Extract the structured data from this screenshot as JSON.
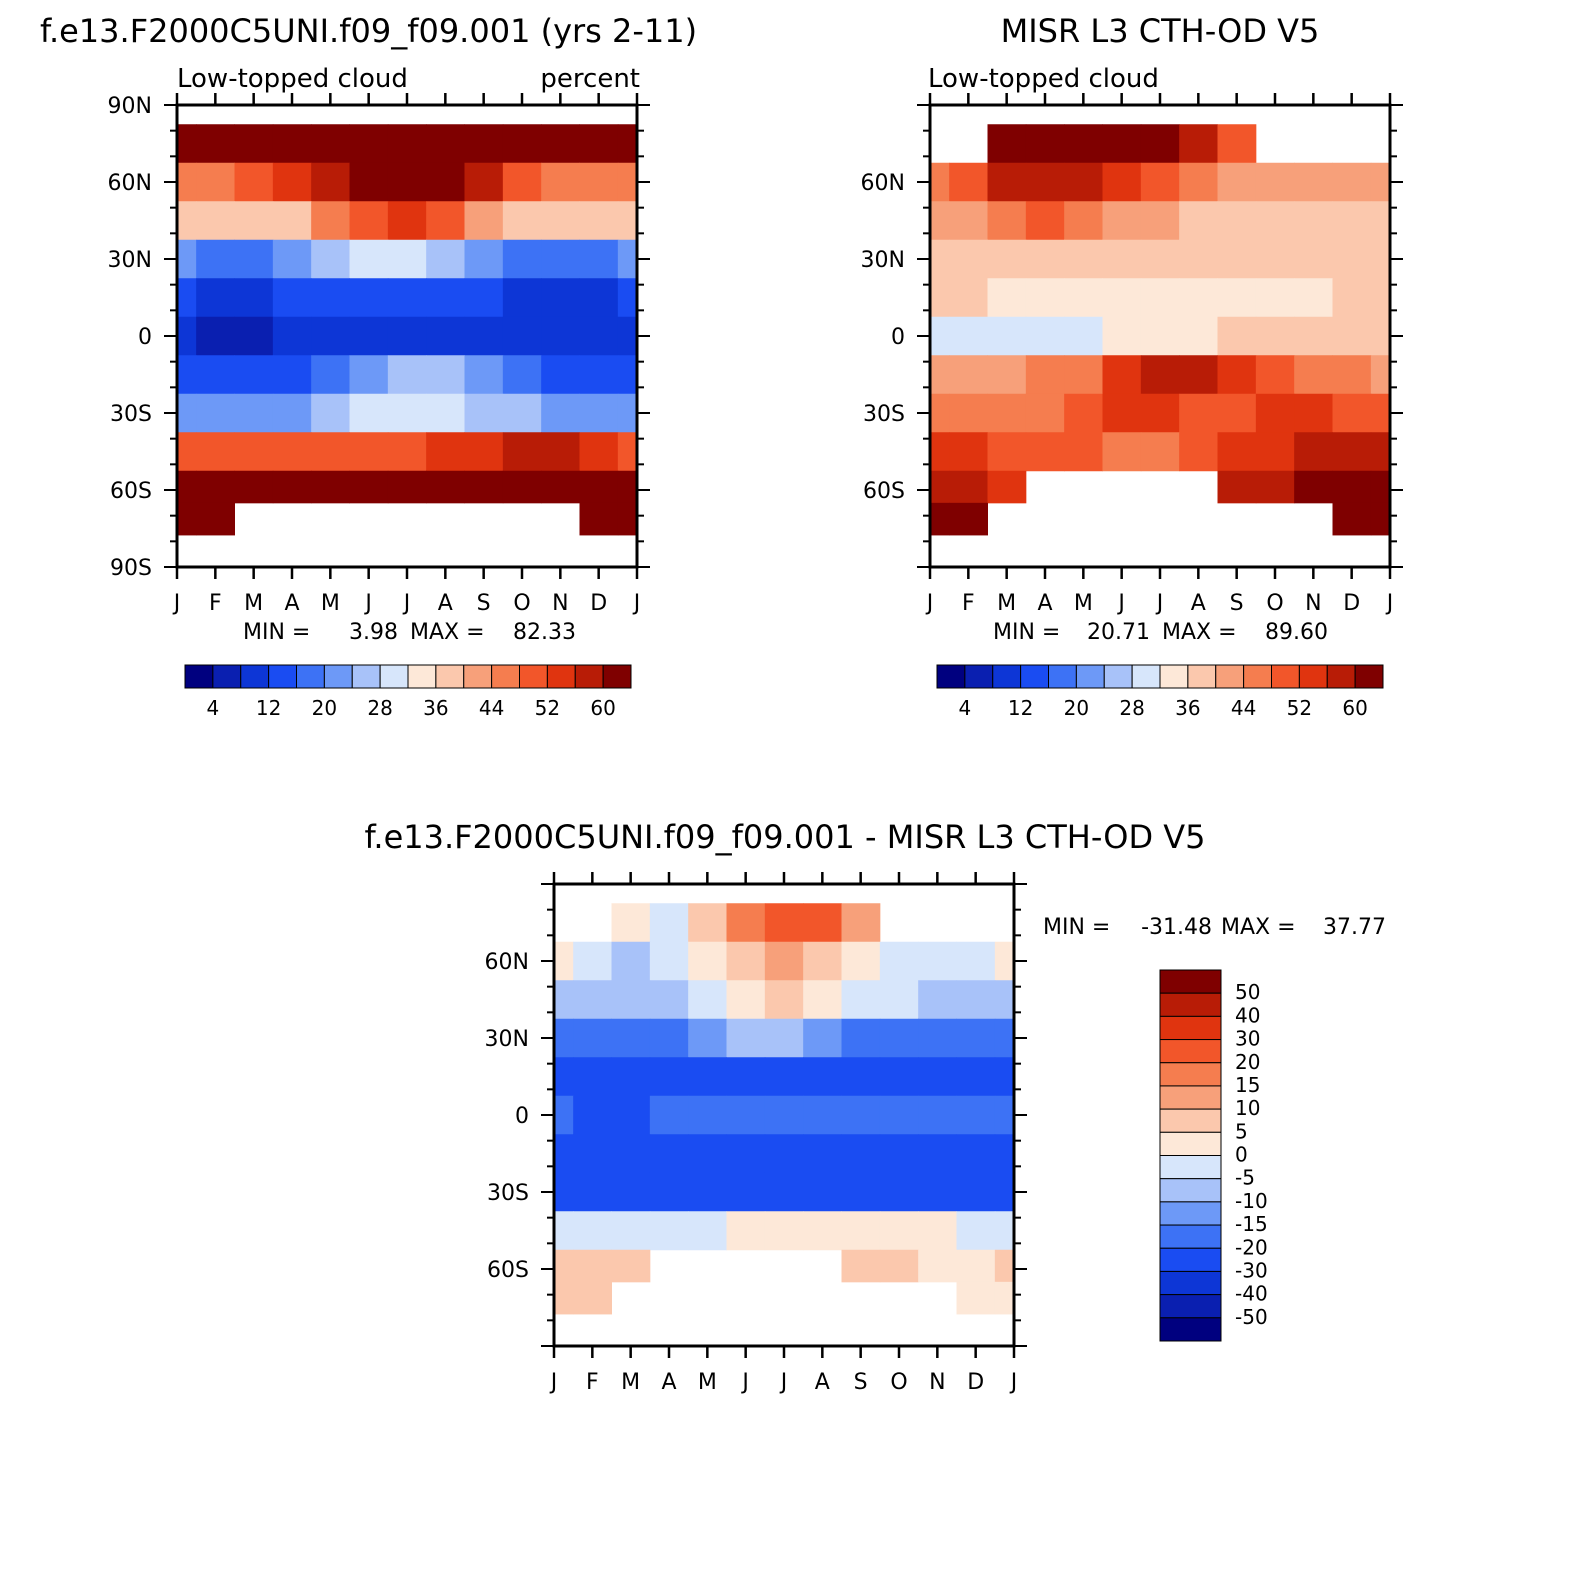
{
  "chart_data": [
    {
      "type": "heatmap",
      "title": "f.e13.F2000C5UNI.f09_f09.001 (yrs 2-11)",
      "subtitle_left": "Low-topped cloud",
      "subtitle_right": "percent",
      "x_ticks": [
        "J",
        "F",
        "M",
        "A",
        "M",
        "J",
        "J",
        "A",
        "S",
        "O",
        "N",
        "D",
        "J"
      ],
      "y_ticks": [
        "90N",
        "60N",
        "30N",
        "0",
        "30S",
        "60S",
        "90S"
      ],
      "ylim": [
        -90,
        90
      ],
      "stats": {
        "min_label": "MIN =",
        "min": "3.98",
        "max_label": "MAX =",
        "max": "82.33"
      },
      "colorbar": {
        "colors": [
          "#00007f",
          "#0a1fb0",
          "#0d36d6",
          "#1a4cf2",
          "#3d72f5",
          "#6d99f7",
          "#a8c2f9",
          "#d7e6fb",
          "#fde8d8",
          "#fbc8ad",
          "#f7a07a",
          "#f57d4f",
          "#f2562a",
          "#e0340f",
          "#b81c06",
          "#7f0000"
        ],
        "labels": [
          "4",
          "12",
          "20",
          "28",
          "36",
          "44",
          "52",
          "60"
        ]
      },
      "rows": [
        {
          "lat": 75,
          "values": [
            70,
            70,
            78,
            78,
            80,
            82,
            80,
            76,
            76,
            74,
            72,
            66,
            66
          ]
        },
        {
          "lat": 60,
          "values": [
            46,
            46,
            48,
            52,
            58,
            64,
            68,
            62,
            56,
            50,
            44,
            44,
            46
          ]
        },
        {
          "lat": 45,
          "values": [
            36,
            36,
            36,
            38,
            44,
            50,
            54,
            48,
            42,
            38,
            36,
            36,
            36
          ]
        },
        {
          "lat": 30,
          "values": [
            20,
            18,
            18,
            20,
            26,
            30,
            30,
            24,
            20,
            18,
            18,
            18,
            20
          ]
        },
        {
          "lat": 15,
          "values": [
            12,
            10,
            10,
            12,
            14,
            14,
            14,
            12,
            12,
            10,
            10,
            10,
            12
          ]
        },
        {
          "lat": 0,
          "values": [
            8,
            6,
            6,
            8,
            10,
            10,
            10,
            8,
            8,
            8,
            8,
            8,
            8
          ]
        },
        {
          "lat": -15,
          "values": [
            12,
            12,
            12,
            14,
            18,
            22,
            26,
            26,
            22,
            18,
            14,
            12,
            12
          ]
        },
        {
          "lat": -30,
          "values": [
            22,
            20,
            20,
            22,
            26,
            28,
            28,
            28,
            26,
            24,
            22,
            22,
            22
          ]
        },
        {
          "lat": -45,
          "values": [
            50,
            50,
            48,
            48,
            48,
            48,
            50,
            52,
            54,
            56,
            56,
            54,
            50
          ]
        },
        {
          "lat": -60,
          "values": [
            62,
            62,
            62,
            64,
            62,
            60,
            60,
            62,
            64,
            66,
            66,
            64,
            62
          ]
        },
        {
          "lat": -70,
          "values": [
            66,
            66,
            null,
            null,
            null,
            null,
            null,
            null,
            null,
            null,
            null,
            66,
            66
          ]
        }
      ]
    },
    {
      "type": "heatmap",
      "title": "MISR L3 CTH-OD V5",
      "subtitle_left": "Low-topped cloud",
      "x_ticks": [
        "J",
        "F",
        "M",
        "A",
        "M",
        "J",
        "J",
        "A",
        "S",
        "O",
        "N",
        "D",
        "J"
      ],
      "y_ticks": [
        "60N",
        "30N",
        "0",
        "30S",
        "60S"
      ],
      "ylim": [
        -90,
        90
      ],
      "stats": {
        "min_label": "MIN =",
        "min": "20.71",
        "max_label": "MAX =",
        "max": "89.60"
      },
      "colorbar": {
        "colors": [
          "#00007f",
          "#0a1fb0",
          "#0d36d6",
          "#1a4cf2",
          "#3d72f5",
          "#6d99f7",
          "#a8c2f9",
          "#d7e6fb",
          "#fde8d8",
          "#fbc8ad",
          "#f7a07a",
          "#f57d4f",
          "#f2562a",
          "#e0340f",
          "#b81c06",
          "#7f0000"
        ],
        "labels": [
          "4",
          "12",
          "20",
          "28",
          "36",
          "44",
          "52",
          "60"
        ]
      },
      "rows": [
        {
          "lat": 75,
          "values": [
            null,
            null,
            80,
            80,
            72,
            66,
            60,
            56,
            50,
            null,
            null,
            null,
            null
          ]
        },
        {
          "lat": 60,
          "values": [
            44,
            48,
            58,
            56,
            56,
            54,
            50,
            44,
            42,
            40,
            40,
            40,
            40
          ]
        },
        {
          "lat": 45,
          "values": [
            40,
            42,
            46,
            48,
            46,
            42,
            40,
            38,
            38,
            36,
            36,
            36,
            36
          ]
        },
        {
          "lat": 30,
          "values": [
            38,
            38,
            38,
            38,
            38,
            38,
            38,
            36,
            36,
            36,
            36,
            36,
            36
          ]
        },
        {
          "lat": 15,
          "values": [
            36,
            36,
            34,
            34,
            32,
            32,
            32,
            32,
            34,
            34,
            34,
            36,
            36
          ]
        },
        {
          "lat": 0,
          "values": [
            30,
            30,
            28,
            28,
            30,
            32,
            34,
            34,
            36,
            36,
            36,
            36,
            36
          ]
        },
        {
          "lat": -15,
          "values": [
            40,
            40,
            42,
            44,
            46,
            52,
            56,
            56,
            52,
            50,
            46,
            44,
            42
          ]
        },
        {
          "lat": -30,
          "values": [
            44,
            44,
            44,
            46,
            48,
            52,
            52,
            50,
            50,
            52,
            52,
            50,
            48
          ]
        },
        {
          "lat": -45,
          "values": [
            54,
            54,
            50,
            48,
            48,
            46,
            46,
            48,
            52,
            54,
            56,
            56,
            56
          ]
        },
        {
          "lat": -60,
          "values": [
            56,
            56,
            52,
            null,
            null,
            null,
            null,
            null,
            56,
            58,
            60,
            62,
            60
          ]
        },
        {
          "lat": -70,
          "values": [
            60,
            60,
            null,
            null,
            null,
            null,
            null,
            null,
            null,
            null,
            null,
            60,
            60
          ]
        }
      ]
    },
    {
      "type": "heatmap",
      "title": "f.e13.F2000C5UNI.f09_f09.001 - MISR L3 CTH-OD V5",
      "x_ticks": [
        "J",
        "F",
        "M",
        "A",
        "M",
        "J",
        "J",
        "A",
        "S",
        "O",
        "N",
        "D",
        "J"
      ],
      "y_ticks": [
        "60N",
        "30N",
        "0",
        "30S",
        "60S"
      ],
      "ylim": [
        -90,
        90
      ],
      "stats": {
        "min_label": "MIN =",
        "min": "-31.48",
        "max_label": "MAX =",
        "max": "37.77"
      },
      "colorbar": {
        "colors": [
          "#00007f",
          "#0a1fb0",
          "#0d36d6",
          "#1a4cf2",
          "#3d72f5",
          "#6d99f7",
          "#a8c2f9",
          "#d7e6fb",
          "#fde8d8",
          "#fbc8ad",
          "#f7a07a",
          "#f57d4f",
          "#f2562a",
          "#e0340f",
          "#b81c06",
          "#7f0000"
        ],
        "labels": [
          "50",
          "40",
          "30",
          "20",
          "15",
          "10",
          "5",
          "0",
          "-5",
          "-10",
          "-15",
          "-20",
          "-30",
          "-40",
          "-50"
        ]
      },
      "rows": [
        {
          "lat": 75,
          "values": [
            null,
            null,
            2,
            -2,
            8,
            16,
            20,
            20,
            12,
            null,
            null,
            null,
            null
          ]
        },
        {
          "lat": 60,
          "values": [
            2,
            -2,
            -6,
            -4,
            2,
            8,
            10,
            6,
            0,
            -2,
            -4,
            -2,
            2
          ]
        },
        {
          "lat": 45,
          "values": [
            -6,
            -8,
            -8,
            -6,
            -2,
            4,
            6,
            4,
            -2,
            -4,
            -6,
            -6,
            -6
          ]
        },
        {
          "lat": 30,
          "values": [
            -18,
            -20,
            -20,
            -18,
            -14,
            -10,
            -10,
            -14,
            -18,
            -20,
            -20,
            -20,
            -18
          ]
        },
        {
          "lat": 15,
          "values": [
            -22,
            -24,
            -24,
            -24,
            -22,
            -22,
            -22,
            -24,
            -24,
            -24,
            -24,
            -24,
            -22
          ]
        },
        {
          "lat": 0,
          "values": [
            -20,
            -22,
            -22,
            -20,
            -18,
            -18,
            -18,
            -20,
            -20,
            -20,
            -20,
            -20,
            -20
          ]
        },
        {
          "lat": -15,
          "values": [
            -26,
            -26,
            -28,
            -28,
            -26,
            -26,
            -26,
            -26,
            -26,
            -26,
            -26,
            -26,
            -26
          ]
        },
        {
          "lat": -30,
          "values": [
            -22,
            -22,
            -22,
            -22,
            -22,
            -22,
            -22,
            -22,
            -22,
            -22,
            -22,
            -22,
            -22
          ]
        },
        {
          "lat": -45,
          "values": [
            -4,
            -4,
            -4,
            -2,
            -2,
            0,
            2,
            2,
            2,
            2,
            0,
            -2,
            -4
          ]
        },
        {
          "lat": -60,
          "values": [
            8,
            8,
            6,
            null,
            null,
            null,
            null,
            null,
            6,
            6,
            4,
            4,
            6
          ]
        },
        {
          "lat": -70,
          "values": [
            8,
            8,
            null,
            null,
            null,
            null,
            null,
            null,
            null,
            null,
            null,
            4,
            4
          ]
        }
      ]
    }
  ]
}
